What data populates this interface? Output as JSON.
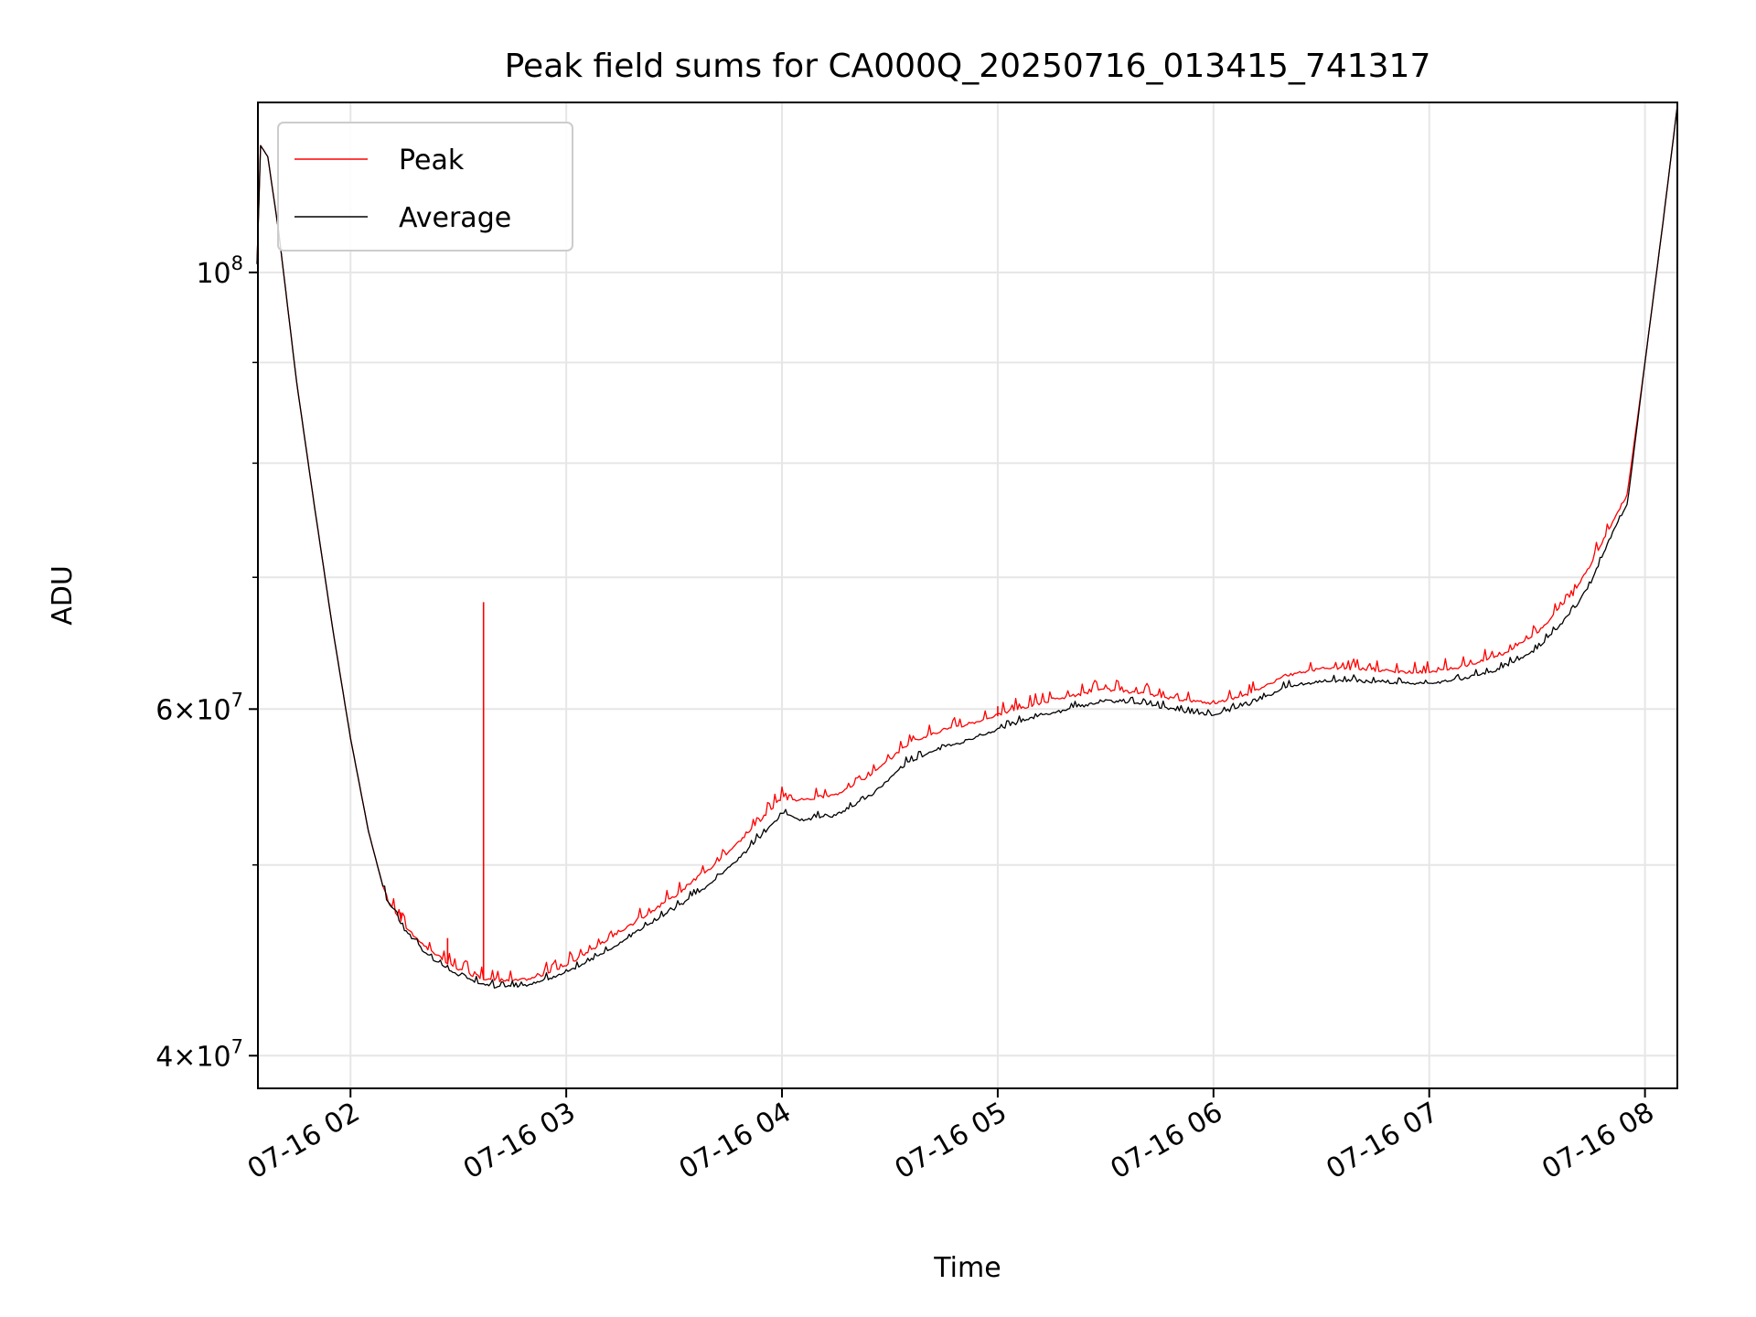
{
  "chart_data": {
    "type": "line",
    "title": "Peak field sums for CA000Q_20250716_013415_741317",
    "xlabel": "Time",
    "ylabel": "ADU",
    "y_scale": "log",
    "ylim": [
      38500000,
      122000000
    ],
    "xlim": [
      "2025-07-16 01:34:15",
      "2025-07-16 08:09:00"
    ],
    "x_tick_labels": [
      "07-16 02",
      "07-16 03",
      "07-16 04",
      "07-16 05",
      "07-16 06",
      "07-16 07",
      "07-16 08"
    ],
    "x_ticks": [
      "2025-07-16 02:00",
      "2025-07-16 03:00",
      "2025-07-16 04:00",
      "2025-07-16 05:00",
      "2025-07-16 06:00",
      "2025-07-16 07:00",
      "2025-07-16 08:00"
    ],
    "y_tick_major": [
      {
        "value": 40000000,
        "base": "4",
        "exp": "7"
      },
      {
        "value": 60000000,
        "base": "6",
        "exp": "7"
      },
      {
        "value": 100000000,
        "base": "",
        "exp": "8"
      }
    ],
    "y_tick_minor": [
      50000000,
      70000000,
      80000000,
      90000000
    ],
    "grid": true,
    "legend": {
      "position": "top-left",
      "entries": [
        "Peak",
        "Average"
      ]
    },
    "series": [
      {
        "name": "Peak",
        "color": "#ff0000",
        "x": [
          "01:34",
          "01:35",
          "01:37",
          "01:40",
          "01:45",
          "01:50",
          "01:55",
          "02:00",
          "02:05",
          "02:10",
          "02:15",
          "02:20",
          "02:25",
          "02:30",
          "02:35",
          "02:40",
          "02:45",
          "02:50",
          "02:55",
          "03:00",
          "03:10",
          "03:20",
          "03:30",
          "03:40",
          "03:50",
          "04:00",
          "04:05",
          "04:15",
          "04:25",
          "04:35",
          "04:45",
          "04:50",
          "05:00",
          "05:10",
          "05:20",
          "05:30",
          "05:40",
          "05:50",
          "06:00",
          "06:10",
          "06:20",
          "06:30",
          "06:40",
          "06:50",
          "07:00",
          "07:10",
          "07:20",
          "07:30",
          "07:40",
          "07:45",
          "07:50",
          "07:55",
          "08:00",
          "08:05",
          "08:09"
        ],
        "y": [
          101000000,
          116000000,
          114500000,
          105000000,
          88000000,
          76000000,
          66000000,
          58000000,
          52000000,
          48000000,
          46500000,
          45500000,
          44700000,
          44200000,
          43800000,
          43600000,
          43600000,
          43700000,
          44000000,
          44400000,
          45500000,
          46800000,
          48100000,
          49700000,
          51700000,
          54000000,
          53800000,
          54200000,
          55500000,
          57500000,
          58500000,
          58700000,
          59500000,
          60200000,
          60800000,
          61300000,
          61000000,
          60600000,
          60300000,
          61000000,
          62300000,
          62800000,
          62800000,
          62600000,
          62500000,
          63000000,
          63800000,
          65500000,
          68500000,
          71000000,
          74000000,
          77000000,
          90000000,
          106000000,
          121500000
        ],
        "spikes": [
          {
            "x": "02:37",
            "y": 68000000
          },
          {
            "x": "02:14",
            "y": 47300000
          },
          {
            "x": "02:27",
            "y": 45900000
          },
          {
            "x": "05:00",
            "y": 60200000
          }
        ]
      },
      {
        "name": "Average",
        "color": "#000000",
        "x": [
          "01:34",
          "01:35",
          "01:37",
          "01:40",
          "01:45",
          "01:50",
          "01:55",
          "02:00",
          "02:05",
          "02:10",
          "02:15",
          "02:20",
          "02:25",
          "02:30",
          "02:35",
          "02:40",
          "02:45",
          "02:50",
          "02:55",
          "03:00",
          "03:10",
          "03:20",
          "03:30",
          "03:40",
          "03:50",
          "04:00",
          "04:05",
          "04:15",
          "04:25",
          "04:35",
          "04:45",
          "04:50",
          "05:00",
          "05:10",
          "05:20",
          "05:30",
          "05:40",
          "05:50",
          "06:00",
          "06:10",
          "06:20",
          "06:30",
          "06:40",
          "06:50",
          "07:00",
          "07:10",
          "07:20",
          "07:30",
          "07:40",
          "07:45",
          "07:50",
          "07:55",
          "08:00",
          "08:05",
          "08:09"
        ],
        "y": [
          101000000,
          116000000,
          114500000,
          105000000,
          88000000,
          76000000,
          66000000,
          58000000,
          52000000,
          48000000,
          46300000,
          45200000,
          44400000,
          43900000,
          43500000,
          43300000,
          43300000,
          43400000,
          43700000,
          44000000,
          45000000,
          46200000,
          47400000,
          48800000,
          50700000,
          53000000,
          52600000,
          52900000,
          54200000,
          56300000,
          57300000,
          57600000,
          58500000,
          59300000,
          59900000,
          60500000,
          60300000,
          59800000,
          59500000,
          60200000,
          61400000,
          61900000,
          61900000,
          61800000,
          61700000,
          62100000,
          62800000,
          64200000,
          67200000,
          69500000,
          73000000,
          76000000,
          90000000,
          106000000,
          121500000
        ]
      }
    ]
  }
}
